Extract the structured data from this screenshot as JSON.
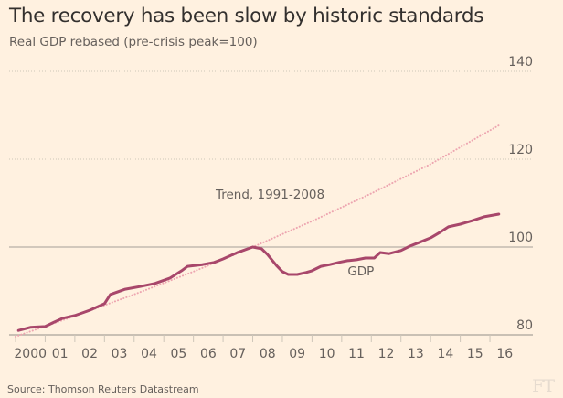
{
  "chart_data": {
    "type": "line",
    "title": "The recovery has been slow by historic standards",
    "subtitle": "Real GDP rebased (pre-crisis peak=100)",
    "xlabel": "",
    "ylabel": "",
    "xlim": [
      2000,
      2017.5
    ],
    "ylim": [
      80,
      140
    ],
    "yticks": [
      80,
      100,
      120,
      140
    ],
    "ytick_labels": [
      "80",
      "100",
      "120",
      "140"
    ],
    "baseline_emphasis": 100,
    "xticks": [
      2000,
      2001,
      2002,
      2003,
      2004,
      2005,
      2006,
      2007,
      2008,
      2009,
      2010,
      2011,
      2012,
      2013,
      2014,
      2015,
      2016
    ],
    "xtick_labels": [
      "2000",
      "01",
      "02",
      "03",
      "04",
      "05",
      "06",
      "07",
      "08",
      "09",
      "10",
      "11",
      "12",
      "13",
      "14",
      "15",
      "16"
    ],
    "grid": true,
    "legend": "none (inline labels)",
    "series": [
      {
        "name": "GDP",
        "label": "GDP",
        "color": "#a8476b",
        "style": "solid",
        "x": [
          2000.1,
          2000.5,
          2001.0,
          2001.3,
          2001.6,
          2002.0,
          2002.5,
          2003.0,
          2003.2,
          2003.7,
          2004.2,
          2004.7,
          2005.2,
          2005.6,
          2005.8,
          2006.3,
          2006.7,
          2007.0,
          2007.5,
          2008.0,
          2008.3,
          2008.5,
          2008.8,
          2009.0,
          2009.2,
          2009.5,
          2009.8,
          2010.0,
          2010.3,
          2010.6,
          2010.9,
          2011.2,
          2011.5,
          2011.8,
          2012.1,
          2012.3,
          2012.6,
          2013.0,
          2013.3,
          2013.6,
          2014.0,
          2014.3,
          2014.6,
          2015.0,
          2015.4,
          2015.8,
          2016.3
        ],
        "values": [
          81.0,
          81.7,
          81.9,
          82.9,
          83.8,
          84.4,
          85.6,
          87.1,
          89.2,
          90.4,
          91.0,
          91.7,
          92.9,
          94.6,
          95.6,
          96.0,
          96.5,
          97.3,
          98.8,
          100.0,
          99.6,
          98.3,
          95.8,
          94.4,
          93.75,
          93.75,
          94.2,
          94.6,
          95.6,
          96.0,
          96.5,
          96.9,
          97.1,
          97.5,
          97.5,
          98.75,
          98.5,
          99.2,
          100.2,
          101.0,
          102.1,
          103.3,
          104.6,
          105.2,
          106.0,
          106.9,
          107.5
        ]
      },
      {
        "name": "Trend, 1991-2008",
        "label": "Trend, 1991-2008",
        "color": "#eda5b0",
        "style": "dotted",
        "x": [
          2000.0,
          2002.0,
          2004.0,
          2006.0,
          2008.0,
          2010.0,
          2012.0,
          2014.0,
          2016.3
        ],
        "values": [
          79.6,
          84.3,
          89.2,
          94.4,
          100.0,
          105.9,
          112.2,
          118.9,
          127.7
        ]
      }
    ],
    "annotations": [
      {
        "text": "Trend, 1991-2008",
        "x": 2006.75,
        "y": 111
      },
      {
        "text": "GDP",
        "x": 2011.2,
        "y": 93.5
      }
    ],
    "source": "Source: Thomson Reuters Datastream"
  },
  "branding": {
    "logo": "FT"
  },
  "colors": {
    "background": "#fff1e0",
    "gdp": "#a8476b",
    "trend": "#eda5b0",
    "grid": "#cec6b9",
    "baseline": "#b7b0a6"
  }
}
